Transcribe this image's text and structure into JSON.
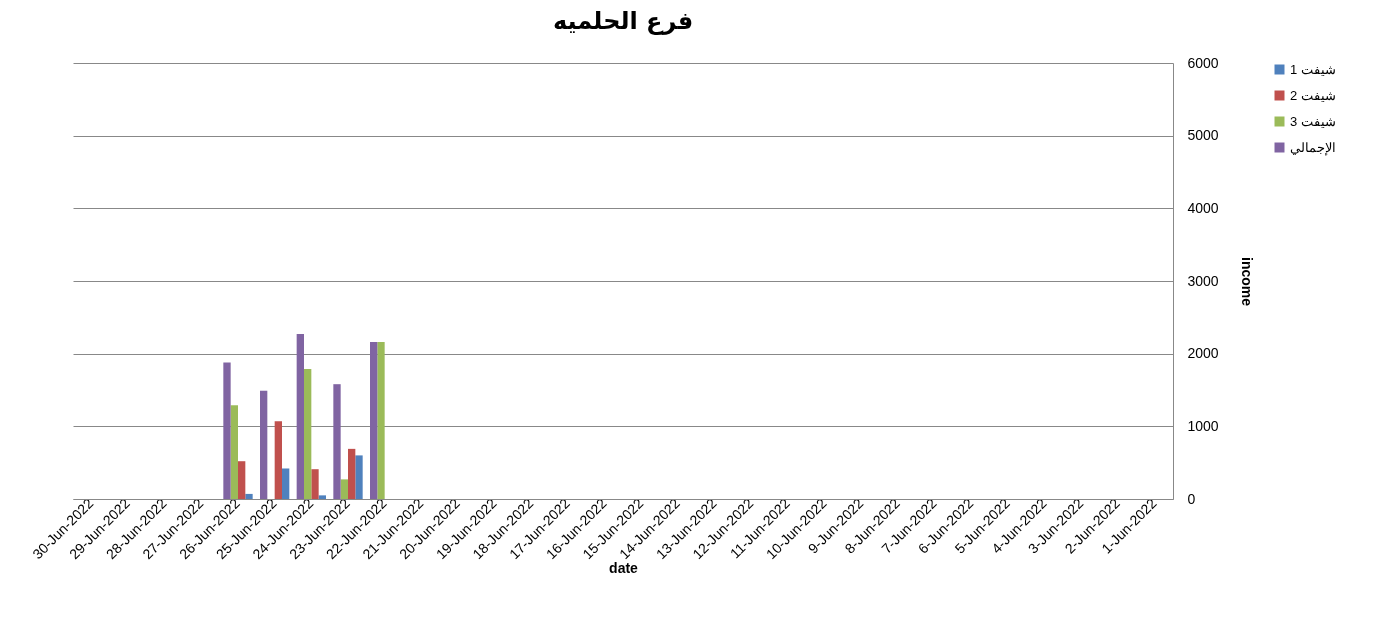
{
  "chart_data": {
    "type": "bar",
    "title": "فرع الحلميه",
    "xlabel": "date",
    "ylabel": "income",
    "categories": [
      "30-Jun-2022",
      "29-Jun-2022",
      "28-Jun-2022",
      "27-Jun-2022",
      "26-Jun-2022",
      "25-Jun-2022",
      "24-Jun-2022",
      "23-Jun-2022",
      "22-Jun-2022",
      "21-Jun-2022",
      "20-Jun-2022",
      "19-Jun-2022",
      "18-Jun-2022",
      "17-Jun-2022",
      "16-Jun-2022",
      "15-Jun-2022",
      "14-Jun-2022",
      "13-Jun-2022",
      "12-Jun-2022",
      "11-Jun-2022",
      "10-Jun-2022",
      "9-Jun-2022",
      "8-Jun-2022",
      "7-Jun-2022",
      "6-Jun-2022",
      "5-Jun-2022",
      "4-Jun-2022",
      "3-Jun-2022",
      "2-Jun-2022",
      "1-Jun-2022"
    ],
    "series": [
      {
        "name": "شيفت 1",
        "color": "#4f81bd",
        "values": [
          null,
          null,
          null,
          null,
          70,
          420,
          50,
          600,
          0,
          null,
          null,
          null,
          null,
          null,
          null,
          null,
          null,
          null,
          null,
          null,
          null,
          null,
          null,
          null,
          null,
          null,
          null,
          null,
          null,
          null
        ]
      },
      {
        "name": "شيفت 2",
        "color": "#c0504d",
        "values": [
          null,
          null,
          null,
          null,
          520,
          1070,
          410,
          690,
          0,
          null,
          null,
          null,
          null,
          null,
          null,
          null,
          null,
          null,
          null,
          null,
          null,
          null,
          null,
          null,
          null,
          null,
          null,
          null,
          null,
          null
        ]
      },
      {
        "name": "شيفت 3",
        "color": "#9bbb59",
        "values": [
          null,
          null,
          null,
          null,
          1290,
          0,
          1790,
          270,
          2160,
          null,
          null,
          null,
          null,
          null,
          null,
          null,
          null,
          null,
          null,
          null,
          null,
          null,
          null,
          null,
          null,
          null,
          null,
          null,
          null,
          null
        ]
      },
      {
        "name": "الإجمالي",
        "color": "#8064a2",
        "values": [
          null,
          null,
          null,
          null,
          1880,
          1490,
          2270,
          1580,
          2160,
          null,
          null,
          null,
          null,
          null,
          null,
          null,
          null,
          null,
          null,
          null,
          null,
          null,
          null,
          null,
          null,
          null,
          null,
          null,
          null,
          null
        ]
      }
    ],
    "ylim": [
      0,
      6000
    ],
    "yticks": [
      0,
      1000,
      2000,
      3000,
      4000,
      5000,
      6000
    ],
    "grid": "y",
    "legend": "right"
  }
}
